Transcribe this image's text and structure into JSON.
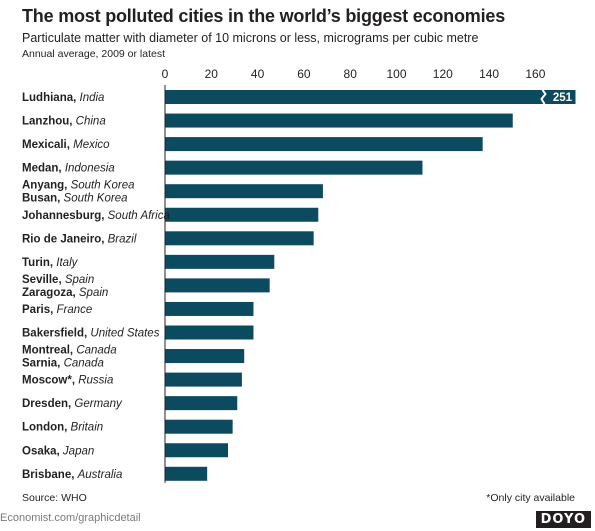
{
  "header": {
    "title": "The most polluted cities in the world’s biggest economies",
    "subtitle": "Particulate matter with diameter of 10 microns or less, micrograms per cubic metre",
    "note": "Annual average, 2009 or latest"
  },
  "footer": {
    "source": "Source: WHO",
    "footnote": "*Only city available",
    "credit": "Economist.com/graphicdetail",
    "logo": "DOYO"
  },
  "colors": {
    "bar": "#0c4a60",
    "axis": "#231f20"
  },
  "chart_data": {
    "type": "bar",
    "orientation": "horizontal",
    "xlim": [
      0,
      170
    ],
    "ticks": [
      0,
      20,
      40,
      60,
      80,
      100,
      120,
      140,
      160
    ],
    "grid": false,
    "rows": [
      {
        "labels": [
          {
            "city": "Ludhiana",
            "country": "India"
          }
        ],
        "value": 251,
        "value_label": "251",
        "axis_break": true
      },
      {
        "labels": [
          {
            "city": "Lanzhou",
            "country": "China"
          }
        ],
        "value": 150
      },
      {
        "labels": [
          {
            "city": "Mexicali",
            "country": "Mexico"
          }
        ],
        "value": 137
      },
      {
        "labels": [
          {
            "city": "Medan",
            "country": "Indonesia"
          }
        ],
        "value": 111
      },
      {
        "labels": [
          {
            "city": "Anyang",
            "country": "South Korea"
          },
          {
            "city": "Busan",
            "country": "South Korea"
          }
        ],
        "value": 68
      },
      {
        "labels": [
          {
            "city": "Johannesburg",
            "country": "South Africa"
          }
        ],
        "value": 66
      },
      {
        "labels": [
          {
            "city": "Rio de Janeiro",
            "country": "Brazil"
          }
        ],
        "value": 64
      },
      {
        "labels": [
          {
            "city": "Turin",
            "country": "Italy"
          }
        ],
        "value": 47
      },
      {
        "labels": [
          {
            "city": "Seville",
            "country": "Spain"
          },
          {
            "city": "Zaragoza",
            "country": "Spain"
          }
        ],
        "value": 45
      },
      {
        "labels": [
          {
            "city": "Paris",
            "country": "France"
          }
        ],
        "value": 38
      },
      {
        "labels": [
          {
            "city": "Bakersfield",
            "country": "United States"
          }
        ],
        "value": 38
      },
      {
        "labels": [
          {
            "city": "Montreal",
            "country": "Canada"
          },
          {
            "city": "Sarnia",
            "country": "Canada"
          }
        ],
        "value": 34
      },
      {
        "labels": [
          {
            "city": "Moscow*",
            "country": "Russia"
          }
        ],
        "value": 33
      },
      {
        "labels": [
          {
            "city": "Dresden",
            "country": "Germany"
          }
        ],
        "value": 31
      },
      {
        "labels": [
          {
            "city": "London",
            "country": "Britain"
          }
        ],
        "value": 29
      },
      {
        "labels": [
          {
            "city": "Osaka",
            "country": "Japan"
          }
        ],
        "value": 27
      },
      {
        "labels": [
          {
            "city": "Brisbane",
            "country": "Australia"
          }
        ],
        "value": 18
      }
    ]
  }
}
